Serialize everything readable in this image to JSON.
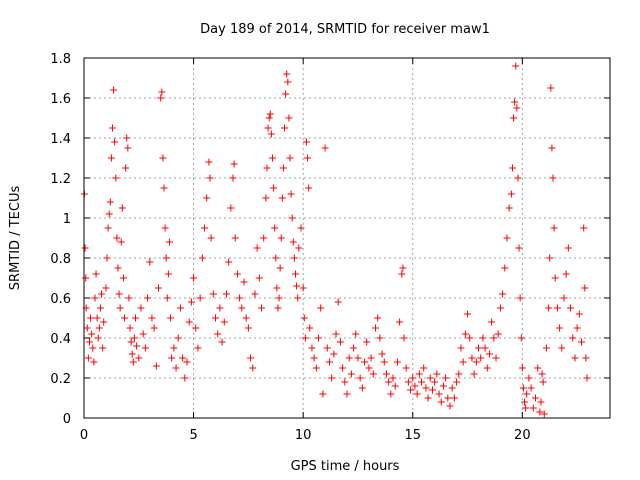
{
  "chart_data": {
    "type": "scatter",
    "title": "Day 189 of 2014, SRMTID for receiver maw1",
    "xlabel": "GPS time / hours",
    "ylabel": "SRMTID / TECUs",
    "xlim": [
      0,
      24
    ],
    "ylim": [
      0,
      1.8
    ],
    "xticks": [
      0,
      5,
      10,
      15,
      20
    ],
    "xtick_labels": [
      "0",
      "5",
      "10",
      "15",
      "20"
    ],
    "yticks": [
      0,
      0.2,
      0.4,
      0.6,
      0.8,
      1.0,
      1.2,
      1.4,
      1.6,
      1.8
    ],
    "ytick_labels": [
      "0",
      "0.2",
      "0.4",
      "0.6",
      "0.8",
      "1",
      "1.2",
      "1.4",
      "1.6",
      "1.8"
    ],
    "grid": true,
    "marker": "+",
    "color": "#ff0000",
    "series": [
      {
        "name": "SRMTID",
        "points": [
          [
            0.02,
            1.12
          ],
          [
            0.05,
            0.85
          ],
          [
            0.08,
            0.7
          ],
          [
            0.1,
            0.55
          ],
          [
            0.15,
            0.45
          ],
          [
            0.2,
            0.3
          ],
          [
            0.25,
            0.38
          ],
          [
            0.3,
            0.5
          ],
          [
            0.35,
            0.42
          ],
          [
            0.4,
            0.35
          ],
          [
            0.45,
            0.28
          ],
          [
            0.5,
            0.6
          ],
          [
            0.55,
            0.72
          ],
          [
            0.6,
            0.5
          ],
          [
            0.65,
            0.4
          ],
          [
            0.7,
            0.45
          ],
          [
            0.75,
            0.55
          ],
          [
            0.8,
            0.62
          ],
          [
            0.85,
            0.35
          ],
          [
            0.9,
            0.48
          ],
          [
            1.0,
            0.65
          ],
          [
            1.05,
            0.8
          ],
          [
            1.1,
            0.95
          ],
          [
            1.15,
            1.02
          ],
          [
            1.2,
            1.08
          ],
          [
            1.25,
            1.3
          ],
          [
            1.3,
            1.45
          ],
          [
            1.35,
            1.64
          ],
          [
            1.4,
            1.38
          ],
          [
            1.45,
            1.2
          ],
          [
            1.5,
            0.9
          ],
          [
            1.55,
            0.75
          ],
          [
            1.6,
            0.62
          ],
          [
            1.65,
            0.55
          ],
          [
            1.7,
            0.88
          ],
          [
            1.75,
            1.05
          ],
          [
            1.8,
            0.7
          ],
          [
            1.85,
            0.5
          ],
          [
            1.9,
            1.25
          ],
          [
            1.95,
            1.4
          ],
          [
            2.0,
            1.35
          ],
          [
            2.05,
            0.6
          ],
          [
            2.1,
            0.45
          ],
          [
            2.15,
            0.38
          ],
          [
            2.2,
            0.32
          ],
          [
            2.25,
            0.28
          ],
          [
            2.3,
            0.4
          ],
          [
            2.35,
            0.5
          ],
          [
            2.4,
            0.36
          ],
          [
            2.5,
            0.3
          ],
          [
            2.6,
            0.55
          ],
          [
            2.7,
            0.42
          ],
          [
            2.8,
            0.35
          ],
          [
            2.9,
            0.6
          ],
          [
            3.0,
            0.78
          ],
          [
            3.1,
            0.5
          ],
          [
            3.2,
            0.45
          ],
          [
            3.3,
            0.26
          ],
          [
            3.4,
            0.65
          ],
          [
            3.5,
            1.6
          ],
          [
            3.55,
            1.63
          ],
          [
            3.6,
            1.3
          ],
          [
            3.65,
            1.15
          ],
          [
            3.7,
            0.95
          ],
          [
            3.75,
            0.8
          ],
          [
            3.8,
            0.6
          ],
          [
            3.85,
            0.72
          ],
          [
            3.9,
            0.88
          ],
          [
            3.95,
            0.5
          ],
          [
            4.0,
            0.3
          ],
          [
            4.1,
            0.35
          ],
          [
            4.2,
            0.25
          ],
          [
            4.3,
            0.4
          ],
          [
            4.4,
            0.55
          ],
          [
            4.5,
            0.3
          ],
          [
            4.6,
            0.2
          ],
          [
            4.7,
            0.28
          ],
          [
            4.8,
            0.48
          ],
          [
            4.9,
            0.58
          ],
          [
            5.0,
            0.7
          ],
          [
            5.1,
            0.45
          ],
          [
            5.2,
            0.35
          ],
          [
            5.3,
            0.6
          ],
          [
            5.4,
            0.8
          ],
          [
            5.5,
            0.95
          ],
          [
            5.6,
            1.1
          ],
          [
            5.7,
            1.28
          ],
          [
            5.75,
            1.2
          ],
          [
            5.8,
            0.9
          ],
          [
            5.9,
            0.62
          ],
          [
            6.0,
            0.5
          ],
          [
            6.1,
            0.42
          ],
          [
            6.2,
            0.55
          ],
          [
            6.3,
            0.38
          ],
          [
            6.4,
            0.48
          ],
          [
            6.5,
            0.62
          ],
          [
            6.6,
            0.78
          ],
          [
            6.7,
            1.05
          ],
          [
            6.8,
            1.2
          ],
          [
            6.85,
            1.27
          ],
          [
            6.9,
            0.9
          ],
          [
            7.0,
            0.72
          ],
          [
            7.1,
            0.6
          ],
          [
            7.2,
            0.55
          ],
          [
            7.3,
            0.68
          ],
          [
            7.4,
            0.5
          ],
          [
            7.5,
            0.45
          ],
          [
            7.6,
            0.3
          ],
          [
            7.7,
            0.25
          ],
          [
            7.8,
            0.62
          ],
          [
            7.9,
            0.85
          ],
          [
            8.0,
            0.7
          ],
          [
            8.1,
            0.55
          ],
          [
            8.2,
            0.9
          ],
          [
            8.3,
            1.1
          ],
          [
            8.35,
            1.25
          ],
          [
            8.4,
            1.45
          ],
          [
            8.45,
            1.5
          ],
          [
            8.5,
            1.52
          ],
          [
            8.55,
            1.42
          ],
          [
            8.6,
            1.3
          ],
          [
            8.65,
            1.15
          ],
          [
            8.7,
            0.95
          ],
          [
            8.75,
            0.8
          ],
          [
            8.8,
            0.65
          ],
          [
            8.85,
            0.55
          ],
          [
            8.9,
            0.6
          ],
          [
            8.95,
            0.75
          ],
          [
            9.0,
            0.9
          ],
          [
            9.05,
            1.1
          ],
          [
            9.1,
            1.25
          ],
          [
            9.15,
            1.45
          ],
          [
            9.2,
            1.62
          ],
          [
            9.25,
            1.72
          ],
          [
            9.3,
            1.68
          ],
          [
            9.35,
            1.5
          ],
          [
            9.4,
            1.3
          ],
          [
            9.45,
            1.12
          ],
          [
            9.5,
            1.0
          ],
          [
            9.55,
            0.88
          ],
          [
            9.6,
            0.8
          ],
          [
            9.65,
            0.72
          ],
          [
            9.7,
            0.66
          ],
          [
            9.75,
            0.6
          ],
          [
            9.8,
            0.85
          ],
          [
            9.9,
            0.95
          ],
          [
            10.0,
            0.65
          ],
          [
            10.05,
            0.5
          ],
          [
            10.1,
            0.4
          ],
          [
            10.15,
            1.38
          ],
          [
            10.2,
            1.3
          ],
          [
            10.25,
            1.15
          ],
          [
            10.3,
            0.45
          ],
          [
            10.4,
            0.35
          ],
          [
            10.5,
            0.3
          ],
          [
            10.6,
            0.25
          ],
          [
            10.7,
            0.4
          ],
          [
            10.8,
            0.55
          ],
          [
            10.9,
            0.12
          ],
          [
            11.0,
            1.35
          ],
          [
            11.1,
            0.35
          ],
          [
            11.2,
            0.28
          ],
          [
            11.3,
            0.2
          ],
          [
            11.4,
            0.32
          ],
          [
            11.5,
            0.42
          ],
          [
            11.6,
            0.58
          ],
          [
            11.7,
            0.38
          ],
          [
            11.8,
            0.25
          ],
          [
            11.9,
            0.18
          ],
          [
            12.0,
            0.12
          ],
          [
            12.1,
            0.3
          ],
          [
            12.2,
            0.22
          ],
          [
            12.3,
            0.35
          ],
          [
            12.4,
            0.42
          ],
          [
            12.5,
            0.3
          ],
          [
            12.6,
            0.2
          ],
          [
            12.7,
            0.15
          ],
          [
            12.8,
            0.28
          ],
          [
            12.9,
            0.38
          ],
          [
            13.0,
            0.25
          ],
          [
            13.1,
            0.3
          ],
          [
            13.2,
            0.22
          ],
          [
            13.3,
            0.45
          ],
          [
            13.4,
            0.5
          ],
          [
            13.5,
            0.4
          ],
          [
            13.6,
            0.32
          ],
          [
            13.7,
            0.28
          ],
          [
            13.8,
            0.22
          ],
          [
            13.9,
            0.18
          ],
          [
            14.0,
            0.12
          ],
          [
            14.1,
            0.2
          ],
          [
            14.2,
            0.16
          ],
          [
            14.3,
            0.28
          ],
          [
            14.4,
            0.48
          ],
          [
            14.5,
            0.72
          ],
          [
            14.55,
            0.75
          ],
          [
            14.6,
            0.4
          ],
          [
            14.7,
            0.25
          ],
          [
            14.8,
            0.18
          ],
          [
            14.9,
            0.14
          ],
          [
            15.0,
            0.2
          ],
          [
            15.1,
            0.16
          ],
          [
            15.2,
            0.12
          ],
          [
            15.3,
            0.22
          ],
          [
            15.4,
            0.18
          ],
          [
            15.5,
            0.25
          ],
          [
            15.6,
            0.15
          ],
          [
            15.7,
            0.1
          ],
          [
            15.8,
            0.2
          ],
          [
            15.9,
            0.14
          ],
          [
            16.0,
            0.18
          ],
          [
            16.1,
            0.22
          ],
          [
            16.2,
            0.12
          ],
          [
            16.3,
            0.08
          ],
          [
            16.4,
            0.16
          ],
          [
            16.5,
            0.2
          ],
          [
            16.6,
            0.1
          ],
          [
            16.7,
            0.06
          ],
          [
            16.8,
            0.15
          ],
          [
            16.9,
            0.1
          ],
          [
            17.0,
            0.18
          ],
          [
            17.1,
            0.22
          ],
          [
            17.2,
            0.35
          ],
          [
            17.3,
            0.28
          ],
          [
            17.4,
            0.42
          ],
          [
            17.5,
            0.52
          ],
          [
            17.6,
            0.4
          ],
          [
            17.7,
            0.3
          ],
          [
            17.8,
            0.22
          ],
          [
            17.9,
            0.28
          ],
          [
            18.0,
            0.35
          ],
          [
            18.1,
            0.3
          ],
          [
            18.2,
            0.4
          ],
          [
            18.3,
            0.35
          ],
          [
            18.4,
            0.25
          ],
          [
            18.5,
            0.32
          ],
          [
            18.6,
            0.48
          ],
          [
            18.7,
            0.4
          ],
          [
            18.8,
            0.3
          ],
          [
            18.9,
            0.42
          ],
          [
            19.0,
            0.55
          ],
          [
            19.1,
            0.62
          ],
          [
            19.2,
            0.75
          ],
          [
            19.3,
            0.9
          ],
          [
            19.4,
            1.05
          ],
          [
            19.5,
            1.12
          ],
          [
            19.55,
            1.25
          ],
          [
            19.6,
            1.5
          ],
          [
            19.65,
            1.58
          ],
          [
            19.7,
            1.76
          ],
          [
            19.75,
            1.55
          ],
          [
            19.8,
            1.2
          ],
          [
            19.85,
            0.85
          ],
          [
            19.9,
            0.6
          ],
          [
            19.95,
            0.4
          ],
          [
            20.0,
            0.25
          ],
          [
            20.05,
            0.15
          ],
          [
            20.1,
            0.08
          ],
          [
            20.15,
            0.05
          ],
          [
            20.2,
            0.12
          ],
          [
            20.3,
            0.2
          ],
          [
            20.4,
            0.15
          ],
          [
            20.5,
            0.05
          ],
          [
            20.6,
            0.1
          ],
          [
            20.7,
            0.25
          ],
          [
            20.8,
            0.03
          ],
          [
            20.85,
            0.08
          ],
          [
            20.9,
            0.22
          ],
          [
            20.95,
            0.18
          ],
          [
            21.0,
            0.02
          ],
          [
            21.1,
            0.35
          ],
          [
            21.2,
            0.55
          ],
          [
            21.25,
            0.8
          ],
          [
            21.3,
            1.65
          ],
          [
            21.35,
            1.35
          ],
          [
            21.4,
            1.2
          ],
          [
            21.45,
            0.95
          ],
          [
            21.5,
            0.7
          ],
          [
            21.6,
            0.55
          ],
          [
            21.7,
            0.45
          ],
          [
            21.8,
            0.35
          ],
          [
            21.9,
            0.6
          ],
          [
            22.0,
            0.72
          ],
          [
            22.1,
            0.85
          ],
          [
            22.2,
            0.55
          ],
          [
            22.3,
            0.4
          ],
          [
            22.4,
            0.3
          ],
          [
            22.5,
            0.45
          ],
          [
            22.6,
            0.52
          ],
          [
            22.7,
            0.38
          ],
          [
            22.8,
            0.95
          ],
          [
            22.85,
            0.65
          ],
          [
            22.9,
            0.3
          ],
          [
            22.95,
            0.2
          ]
        ]
      }
    ]
  }
}
